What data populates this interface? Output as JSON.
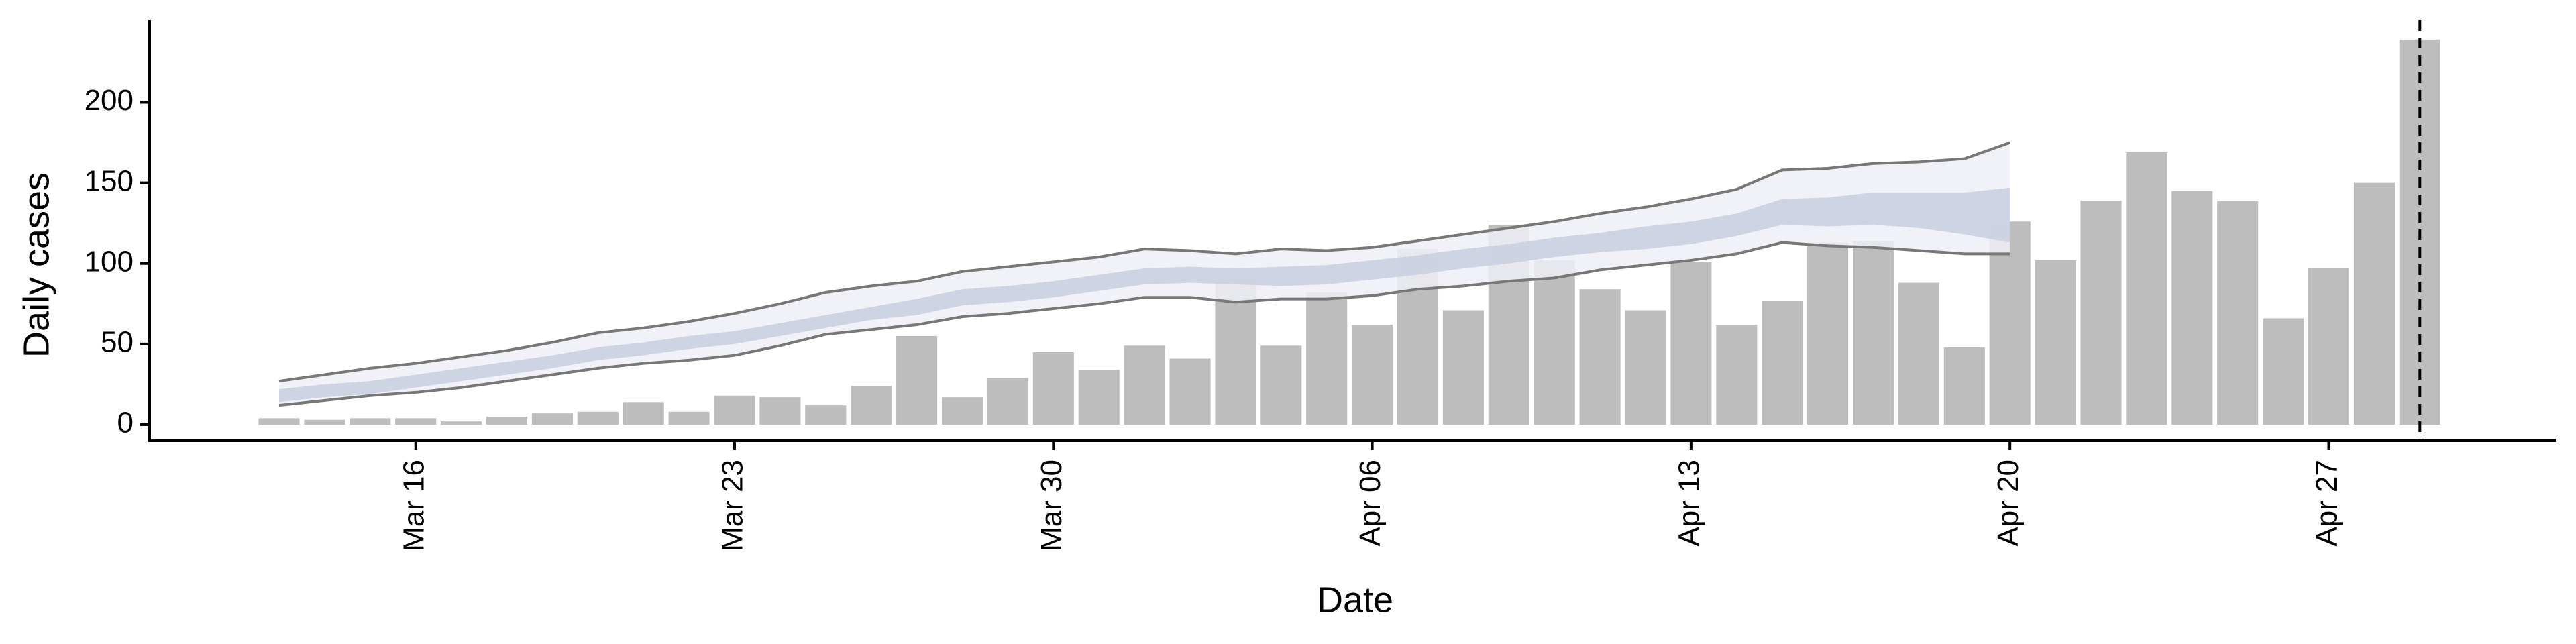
{
  "chart_data": {
    "type": "bar",
    "xlabel": "Date",
    "ylabel": "Daily cases",
    "x": [
      "Mar 13",
      "Mar 14",
      "Mar 15",
      "Mar 16",
      "Mar 17",
      "Mar 18",
      "Mar 19",
      "Mar 20",
      "Mar 21",
      "Mar 22",
      "Mar 23",
      "Mar 24",
      "Mar 25",
      "Mar 26",
      "Mar 27",
      "Mar 28",
      "Mar 29",
      "Mar 30",
      "Mar 31",
      "Apr 01",
      "Apr 02",
      "Apr 03",
      "Apr 04",
      "Apr 05",
      "Apr 06",
      "Apr 07",
      "Apr 08",
      "Apr 09",
      "Apr 10",
      "Apr 11",
      "Apr 12",
      "Apr 13",
      "Apr 14",
      "Apr 15",
      "Apr 16",
      "Apr 17",
      "Apr 18",
      "Apr 19",
      "Apr 20",
      "Apr 21",
      "Apr 22",
      "Apr 23",
      "Apr 24",
      "Apr 25",
      "Apr 26",
      "Apr 27",
      "Apr 28",
      "Apr 29"
    ],
    "values": [
      4,
      3,
      4,
      4,
      2,
      5,
      7,
      8,
      14,
      8,
      18,
      17,
      12,
      24,
      55,
      17,
      29,
      45,
      34,
      49,
      41,
      92,
      49,
      82,
      62,
      109,
      71,
      124,
      102,
      84,
      71,
      101,
      62,
      77,
      113,
      114,
      88,
      48,
      126,
      102,
      139,
      169,
      145,
      139,
      66,
      97,
      150,
      239
    ],
    "color": "#bdbdbd",
    "interval_outer": {
      "color": "#eef0f6",
      "line_color": "#777777",
      "upper": [
        27,
        31,
        35,
        38,
        42,
        46,
        51,
        57,
        60,
        64,
        69,
        75,
        82,
        86,
        89,
        95,
        98,
        101,
        104,
        109,
        108,
        106,
        109,
        108,
        110,
        114,
        118,
        122,
        126,
        131,
        135,
        140,
        146,
        158,
        159,
        162,
        163,
        165,
        175,
        null,
        null,
        null,
        null,
        null,
        null,
        null,
        null,
        null
      ],
      "lower": [
        12,
        15,
        18,
        20,
        23,
        27,
        31,
        35,
        38,
        40,
        43,
        49,
        56,
        59,
        62,
        67,
        69,
        72,
        75,
        79,
        79,
        76,
        78,
        78,
        80,
        84,
        86,
        89,
        91,
        96,
        99,
        102,
        106,
        113,
        111,
        110,
        108,
        106,
        106,
        null,
        null,
        null,
        null,
        null,
        null,
        null,
        null,
        null
      ]
    },
    "interval_inner": {
      "color": "#c9cfe2",
      "upper": [
        22,
        25,
        27,
        31,
        35,
        39,
        43,
        48,
        51,
        55,
        58,
        63,
        68,
        73,
        78,
        84,
        86,
        89,
        93,
        97,
        98,
        97,
        98,
        99,
        102,
        105,
        109,
        112,
        116,
        119,
        123,
        126,
        131,
        140,
        141,
        144,
        144,
        144,
        147,
        null,
        null,
        null,
        null,
        null,
        null,
        null,
        null,
        null
      ],
      "lower": [
        14,
        17,
        19,
        23,
        27,
        31,
        35,
        40,
        43,
        47,
        50,
        55,
        60,
        65,
        68,
        74,
        76,
        79,
        83,
        87,
        88,
        87,
        86,
        87,
        90,
        93,
        97,
        100,
        104,
        107,
        109,
        112,
        117,
        124,
        123,
        124,
        122,
        118,
        113,
        null,
        null,
        null,
        null,
        null,
        null,
        null,
        null,
        null
      ]
    },
    "vline": "Apr 29",
    "ylim": [
      -10,
      251
    ],
    "yticks": [
      0,
      50,
      100,
      150,
      200
    ],
    "xticks": [
      "Mar 16",
      "Mar 23",
      "Mar 30",
      "Apr 06",
      "Apr 13",
      "Apr 20",
      "Apr 27"
    ]
  }
}
